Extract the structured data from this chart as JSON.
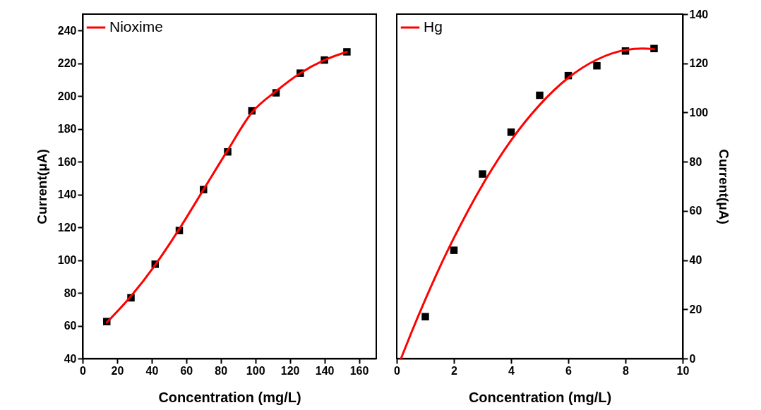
{
  "chart_data": [
    {
      "type": "scatter",
      "xlabel": "Concentration (mg/L)",
      "ylabel": "Current(μA)",
      "x": [
        14,
        28,
        42,
        56,
        70,
        84,
        98,
        112,
        126,
        140,
        153
      ],
      "xlim": [
        0,
        170
      ],
      "xticks": [
        0,
        20,
        40,
        60,
        80,
        100,
        120,
        140,
        160
      ],
      "ylim": [
        40,
        250
      ],
      "yticks": [
        40,
        60,
        80,
        100,
        120,
        140,
        160,
        180,
        200,
        220,
        240
      ],
      "grid": false,
      "legend": "top left",
      "series": [
        {
          "type": "scatter",
          "marker": "square",
          "color": "#000000",
          "values": [
            62.5,
            77,
            97.5,
            118,
            143,
            166,
            191,
            202,
            214,
            222,
            227
          ]
        },
        {
          "type": "line",
          "name": "Nioxime",
          "color": "#ff0000",
          "x": [
            14,
            28,
            42,
            56,
            70,
            84,
            98,
            112,
            126,
            140,
            153
          ],
          "values": [
            62,
            78,
            97,
            119,
            143,
            167,
            190,
            203,
            214,
            222,
            227
          ]
        }
      ]
    },
    {
      "type": "scatter",
      "xlabel": "Concentration (mg/L)",
      "y2label": "Current(μA)",
      "x": [
        1,
        2,
        3,
        4,
        5,
        6,
        7,
        8,
        9
      ],
      "xlim": [
        0,
        10
      ],
      "xticks": [
        0,
        2,
        4,
        6,
        8,
        10
      ],
      "y2lim": [
        0,
        140
      ],
      "y2ticks": [
        0,
        20,
        40,
        60,
        80,
        100,
        120,
        140
      ],
      "grid": false,
      "legend": "top left",
      "series": [
        {
          "type": "scatter",
          "axis": "y2",
          "marker": "square",
          "color": "#000000",
          "values": [
            17,
            44,
            75,
            92,
            107,
            115,
            119,
            125,
            126
          ]
        },
        {
          "type": "line",
          "axis": "y2",
          "name": "Hg",
          "color": "#ff0000",
          "x": [
            0.15,
            0.5,
            1,
            1.5,
            2,
            3,
            4,
            5,
            6,
            7,
            8,
            8.6,
            9
          ],
          "values": [
            0,
            10.2,
            24,
            37,
            49,
            70.6,
            88.7,
            103.1,
            114.1,
            121.5,
            125.4,
            126,
            125.7
          ]
        }
      ]
    }
  ]
}
